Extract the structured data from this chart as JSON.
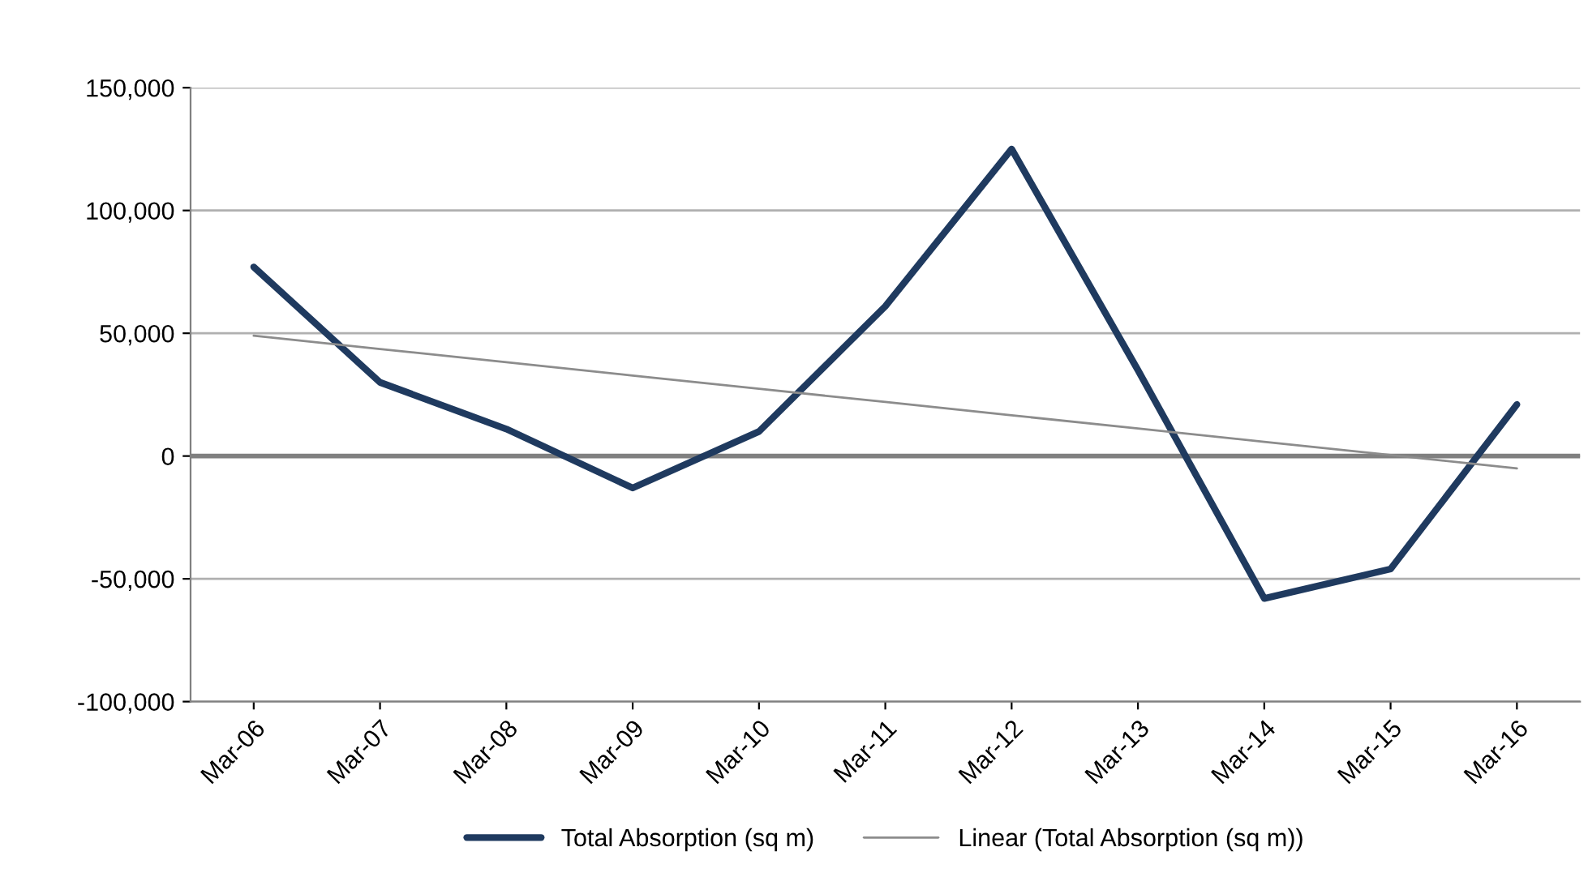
{
  "chart_data": {
    "type": "line",
    "categories": [
      "Mar-06",
      "Mar-07",
      "Mar-08",
      "Mar-09",
      "Mar-10",
      "Mar-11",
      "Mar-12",
      "Mar-13",
      "Mar-14",
      "Mar-15",
      "Mar-16"
    ],
    "series": [
      {
        "name": "Total Absorption (sq m)",
        "color": "#1f3a5f",
        "values": [
          77000,
          30000,
          11000,
          -13000,
          10000,
          61000,
          125000,
          35000,
          -58000,
          -46000,
          21000
        ]
      },
      {
        "name": "Linear (Total Absorption (sq m))",
        "color": "#8c8c8c",
        "values": [
          49000,
          43600,
          38200,
          32800,
          27400,
          22000,
          16600,
          11200,
          5800,
          400,
          -5000
        ]
      }
    ],
    "ylim": [
      -100000,
      150000
    ],
    "yticks": [
      {
        "value": -100000,
        "label": "-100,000"
      },
      {
        "value": -50000,
        "label": "-50,000"
      },
      0,
      {
        "value": 50000,
        "label": "50,000"
      },
      {
        "value": 100000,
        "label": "100,000"
      },
      {
        "value": 150000,
        "label": "150,000"
      }
    ],
    "ref_lines": [
      {
        "axis": "y",
        "value": 0,
        "color": "#808080"
      }
    ],
    "grid": "y",
    "legend": "bottom",
    "marker": "none",
    "line_style": "solid"
  }
}
